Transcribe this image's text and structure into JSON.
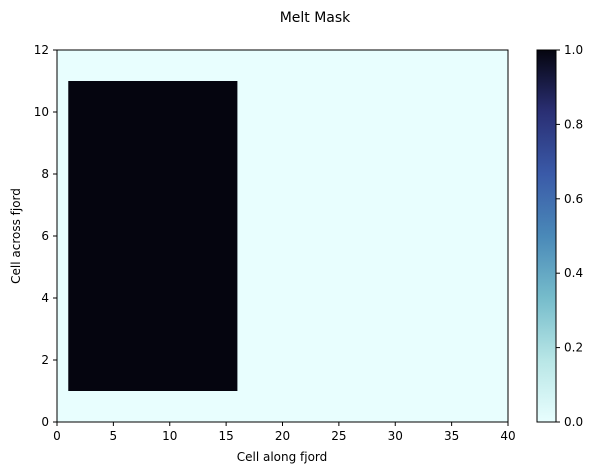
{
  "chart_data": {
    "type": "heatmap",
    "title": "Melt Mask",
    "xlabel": "Cell along fjord",
    "ylabel": "Cell across fjord",
    "xlim": [
      0,
      40
    ],
    "ylim": [
      0,
      12
    ],
    "xticks": [
      0,
      5,
      10,
      15,
      20,
      25,
      30,
      35,
      40
    ],
    "yticks": [
      0,
      2,
      4,
      6,
      8,
      10,
      12
    ],
    "colorbar": {
      "range": [
        0,
        1
      ],
      "ticks": [
        "0.0",
        "0.2",
        "0.4",
        "0.6",
        "0.8",
        "1.0"
      ],
      "colormap": [
        "#e8fefe",
        "#b8e6e6",
        "#76bccb",
        "#4a89b8",
        "#3a5aa8",
        "#2a2f74",
        "#05050f"
      ]
    },
    "background_value": 0,
    "regions": [
      {
        "x": [
          1,
          16
        ],
        "y": [
          1,
          11
        ],
        "value": 1
      }
    ],
    "grid": false,
    "colors": {
      "low": "#e8fefe",
      "high": "#05050f"
    }
  }
}
